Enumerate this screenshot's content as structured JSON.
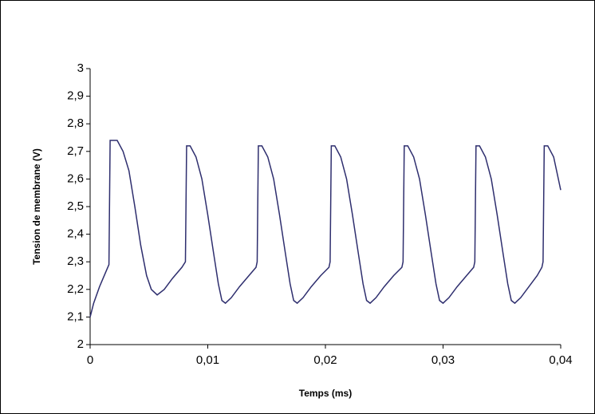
{
  "chart_data": {
    "type": "line",
    "x_label": "Temps (ms)",
    "y_label": "Tension de membrane (V)",
    "x": [
      0,
      0.0003,
      0.0008,
      0.0014,
      0.0016,
      0.0017,
      0.0023,
      0.0028,
      0.0033,
      0.0038,
      0.0043,
      0.0048,
      0.0052,
      0.0057,
      0.0063,
      0.007,
      0.0078,
      0.0081,
      0.0082,
      0.0085,
      0.009,
      0.0095,
      0.01,
      0.0105,
      0.0109,
      0.0112,
      0.0115,
      0.012,
      0.0127,
      0.0135,
      0.0141,
      0.0142,
      0.0143,
      0.0146,
      0.0151,
      0.0156,
      0.0161,
      0.0166,
      0.017,
      0.0173,
      0.0176,
      0.0181,
      0.0188,
      0.0196,
      0.0203,
      0.0204,
      0.0205,
      0.0208,
      0.0213,
      0.0218,
      0.0223,
      0.0228,
      0.0232,
      0.0235,
      0.0238,
      0.0243,
      0.025,
      0.0258,
      0.0265,
      0.0266,
      0.0267,
      0.027,
      0.0275,
      0.028,
      0.0285,
      0.029,
      0.0294,
      0.0297,
      0.03,
      0.0305,
      0.0312,
      0.032,
      0.0326,
      0.0327,
      0.0328,
      0.0331,
      0.0336,
      0.0341,
      0.0346,
      0.0351,
      0.0355,
      0.0358,
      0.0361,
      0.0366,
      0.0373,
      0.038,
      0.0384,
      0.0385,
      0.0386,
      0.0389,
      0.0394,
      0.0398,
      0.04
    ],
    "series": [
      {
        "color": "#2e2e6e",
        "values": [
          2.1,
          2.15,
          2.21,
          2.27,
          2.29,
          2.74,
          2.74,
          2.7,
          2.63,
          2.5,
          2.36,
          2.25,
          2.2,
          2.18,
          2.2,
          2.24,
          2.28,
          2.3,
          2.72,
          2.72,
          2.68,
          2.6,
          2.47,
          2.33,
          2.22,
          2.16,
          2.15,
          2.17,
          2.21,
          2.25,
          2.28,
          2.3,
          2.72,
          2.72,
          2.68,
          2.6,
          2.47,
          2.33,
          2.22,
          2.16,
          2.15,
          2.17,
          2.21,
          2.25,
          2.28,
          2.3,
          2.72,
          2.72,
          2.68,
          2.6,
          2.47,
          2.33,
          2.22,
          2.16,
          2.15,
          2.17,
          2.21,
          2.25,
          2.28,
          2.3,
          2.72,
          2.72,
          2.68,
          2.6,
          2.47,
          2.33,
          2.22,
          2.16,
          2.15,
          2.17,
          2.21,
          2.25,
          2.28,
          2.3,
          2.72,
          2.72,
          2.68,
          2.6,
          2.47,
          2.33,
          2.22,
          2.16,
          2.15,
          2.17,
          2.21,
          2.25,
          2.28,
          2.3,
          2.72,
          2.72,
          2.68,
          2.6,
          2.56
        ]
      }
    ],
    "xlim": [
      0,
      0.04
    ],
    "xticks": [
      0,
      {
        "value": 0.01,
        "label": "0,01"
      },
      {
        "value": 0.02,
        "label": "0,02"
      },
      {
        "value": 0.03,
        "label": "0,03"
      },
      {
        "value": 0.04,
        "label": "0,04"
      }
    ],
    "ylim": [
      2,
      3
    ],
    "yticks": [
      2,
      {
        "value": 2.1,
        "label": "2,1"
      },
      {
        "value": 2.2,
        "label": "2,2"
      },
      {
        "value": 2.3,
        "label": "2,3"
      },
      {
        "value": 2.4,
        "label": "2,4"
      },
      {
        "value": 2.5,
        "label": "2,5"
      },
      {
        "value": 2.6,
        "label": "2,6"
      },
      {
        "value": 2.7,
        "label": "2,7"
      },
      {
        "value": 2.8,
        "label": "2,8"
      },
      {
        "value": 2.9,
        "label": "2,9"
      },
      3
    ],
    "grid": false
  }
}
